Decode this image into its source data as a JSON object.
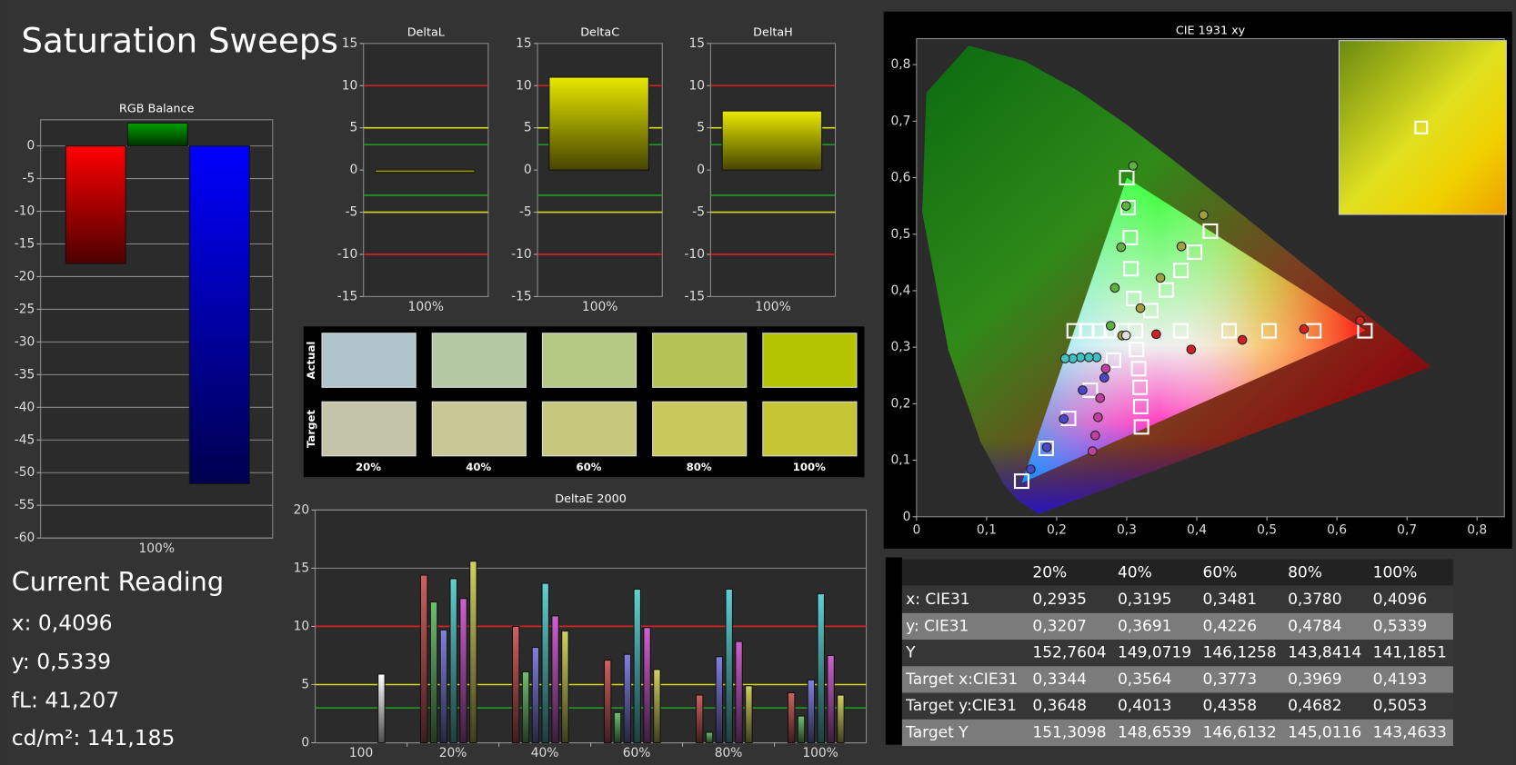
{
  "title": "Saturation Sweeps",
  "chart_data": [
    {
      "type": "bar",
      "title": "RGB Balance",
      "categories": [
        "100%"
      ],
      "series": [
        {
          "color": "#ff0000",
          "values": [
            -18
          ]
        },
        {
          "color": "#00a000",
          "values": [
            3.5
          ]
        },
        {
          "color": "#0000ff",
          "values": [
            -51.7
          ]
        }
      ],
      "ylim": [
        -60,
        4
      ],
      "yticks": [
        0,
        -5,
        -10,
        -15,
        -20,
        -25,
        -30,
        -35,
        -40,
        -45,
        -50,
        -55,
        -60
      ],
      "grid": true
    },
    {
      "type": "bar",
      "title": "DeltaL",
      "categories": [
        "100%"
      ],
      "series": [
        {
          "color": "#e8e800",
          "values": [
            -0.3
          ]
        }
      ],
      "ylim": [
        -15,
        15
      ],
      "yticks": [
        15,
        10,
        5,
        0,
        -5,
        -10,
        -15
      ],
      "grid": false,
      "reference_lines": [
        {
          "value": 10,
          "color": "#e02020"
        },
        {
          "value": -10,
          "color": "#e02020"
        },
        {
          "value": 5,
          "color": "#d8d820"
        },
        {
          "value": -5,
          "color": "#d8d820"
        },
        {
          "value": 3,
          "color": "#20a020"
        },
        {
          "value": -3,
          "color": "#20a020"
        }
      ]
    },
    {
      "type": "bar",
      "title": "DeltaC",
      "categories": [
        "100%"
      ],
      "series": [
        {
          "color": "#e8e800",
          "values": [
            11.0
          ]
        }
      ],
      "ylim": [
        -15,
        15
      ],
      "yticks": [
        15,
        10,
        5,
        0,
        -5,
        -10,
        -15
      ],
      "grid": false,
      "reference_lines": [
        {
          "value": 10,
          "color": "#e02020"
        },
        {
          "value": -10,
          "color": "#e02020"
        },
        {
          "value": 5,
          "color": "#d8d820"
        },
        {
          "value": -5,
          "color": "#d8d820"
        },
        {
          "value": 3,
          "color": "#20a020"
        },
        {
          "value": -3,
          "color": "#20a020"
        }
      ]
    },
    {
      "type": "bar",
      "title": "DeltaH",
      "categories": [
        "100%"
      ],
      "series": [
        {
          "color": "#e8e800",
          "values": [
            7.0
          ]
        }
      ],
      "ylim": [
        -15,
        15
      ],
      "yticks": [
        15,
        10,
        5,
        0,
        -5,
        -10,
        -15
      ],
      "grid": false,
      "reference_lines": [
        {
          "value": 10,
          "color": "#e02020"
        },
        {
          "value": -10,
          "color": "#e02020"
        },
        {
          "value": 5,
          "color": "#d8d820"
        },
        {
          "value": -5,
          "color": "#d8d820"
        },
        {
          "value": 3,
          "color": "#20a020"
        },
        {
          "value": -3,
          "color": "#20a020"
        }
      ]
    },
    {
      "type": "bar",
      "title": "DeltaE 2000",
      "categories": [
        "100",
        "20%",
        "40%",
        "60%",
        "80%",
        "100%"
      ],
      "series": [
        {
          "color": "#d06060",
          "values": [
            null,
            14.4,
            10.0,
            7.1,
            4.1,
            4.3
          ]
        },
        {
          "color": "#70c070",
          "values": [
            null,
            12.1,
            6.1,
            2.6,
            0.9,
            2.3
          ]
        },
        {
          "color": "#8080e0",
          "values": [
            null,
            9.7,
            8.2,
            7.6,
            7.4,
            5.4
          ]
        },
        {
          "color": "#60d0d0",
          "values": [
            null,
            14.1,
            13.7,
            13.2,
            13.2,
            12.8
          ]
        },
        {
          "color": "#d060d0",
          "values": [
            null,
            12.4,
            10.9,
            9.9,
            8.7,
            7.5
          ]
        },
        {
          "color": "#d0d060",
          "values": [
            null,
            15.6,
            9.6,
            6.3,
            4.9,
            4.1
          ]
        },
        {
          "color": "#ffffff",
          "values": [
            5.9,
            null,
            null,
            null,
            null,
            null
          ]
        }
      ],
      "ylim": [
        0,
        20
      ],
      "yticks": [
        0,
        5,
        10,
        15,
        20
      ],
      "grid": true,
      "reference_lines": [
        {
          "value": 10,
          "color": "#e02020"
        },
        {
          "value": 5,
          "color": "#d8d820"
        },
        {
          "value": 3,
          "color": "#20a020"
        }
      ]
    },
    {
      "type": "scatter",
      "title": "CIE 1931 xy",
      "xlim": [
        0,
        0.839
      ],
      "ylim": [
        0,
        0.846
      ],
      "xticks": [
        0,
        {
          "value": 0.1,
          "label": "0,1"
        },
        {
          "value": 0.2,
          "label": "0,2"
        },
        {
          "value": 0.3,
          "label": "0,3"
        },
        {
          "value": 0.4,
          "label": "0,4"
        },
        {
          "value": 0.5,
          "label": "0,5"
        },
        {
          "value": 0.6,
          "label": "0,6"
        },
        {
          "value": 0.7,
          "label": "0,7"
        },
        {
          "value": 0.8,
          "label": "0,8"
        }
      ],
      "yticks": [
        0,
        {
          "value": 0.1,
          "label": "0,1"
        },
        {
          "value": 0.2,
          "label": "0,2"
        },
        {
          "value": 0.3,
          "label": "0,3"
        },
        {
          "value": 0.4,
          "label": "0,4"
        },
        {
          "value": 0.5,
          "label": "0,5"
        },
        {
          "value": 0.6,
          "label": "0,6"
        },
        {
          "value": 0.7,
          "label": "0,7"
        },
        {
          "value": 0.8,
          "label": "0,8"
        }
      ],
      "series": [
        {
          "marker": "square",
          "color": "#ffffff",
          "x": [
            0.377,
            0.446,
            0.503,
            0.567,
            0.64,
            0.31,
            0.306,
            0.305,
            0.302,
            0.3,
            0.281,
            0.248,
            0.217,
            0.185,
            0.15,
            0.293,
            0.278,
            0.261,
            0.243,
            0.225,
            0.314,
            0.317,
            0.319,
            0.32,
            0.321,
            0.3344,
            0.3564,
            0.3773,
            0.3969,
            0.4193,
            0.3127
          ],
          "values": [
            0.329,
            0.329,
            0.329,
            0.329,
            0.329,
            0.386,
            0.439,
            0.494,
            0.547,
            0.6,
            0.277,
            0.224,
            0.174,
            0.121,
            0.063,
            0.329,
            0.329,
            0.329,
            0.329,
            0.329,
            0.296,
            0.262,
            0.229,
            0.195,
            0.159,
            0.3648,
            0.4013,
            0.4358,
            0.4682,
            0.5053,
            0.329
          ]
        },
        {
          "marker": "circle",
          "color": "#d02020",
          "x": [
            0.342,
            0.392,
            0.465,
            0.553,
            0.633
          ],
          "values": [
            0.323,
            0.296,
            0.313,
            0.332,
            0.347
          ]
        },
        {
          "marker": "circle",
          "color": "#60b040",
          "x": [
            0.277,
            0.283,
            0.292,
            0.299,
            0.309
          ],
          "values": [
            0.338,
            0.405,
            0.477,
            0.55,
            0.621
          ]
        },
        {
          "marker": "circle",
          "color": "#4848c8",
          "x": [
            0.268,
            0.237,
            0.21,
            0.186,
            0.163
          ],
          "values": [
            0.246,
            0.224,
            0.173,
            0.123,
            0.084
          ]
        },
        {
          "marker": "circle",
          "color": "#40c0c0",
          "x": [
            0.257,
            0.246,
            0.234,
            0.223,
            0.212
          ],
          "values": [
            0.282,
            0.282,
            0.282,
            0.28,
            0.28
          ]
        },
        {
          "marker": "circle",
          "color": "#c040a0",
          "x": [
            0.27,
            0.262,
            0.259,
            0.255,
            0.251
          ],
          "values": [
            0.262,
            0.21,
            0.176,
            0.144,
            0.116
          ]
        },
        {
          "marker": "circle",
          "color": "#a0a040",
          "x": [
            0.2935,
            0.3195,
            0.3481,
            0.378,
            0.4096
          ],
          "values": [
            0.3207,
            0.3691,
            0.4226,
            0.4784,
            0.5339
          ]
        },
        {
          "marker": "circle",
          "color": "#e0e0e0",
          "x": [
            0.299
          ],
          "values": [
            0.321
          ]
        }
      ]
    }
  ],
  "swatches": {
    "row_labels": [
      "Actual",
      "Target"
    ],
    "column_labels": [
      "20%",
      "40%",
      "60%",
      "80%",
      "100%"
    ],
    "colors": [
      [
        "#b0c4cc",
        "#b4c8a4",
        "#b4c884",
        "#b4c454",
        "#b4c400"
      ],
      [
        "#c4c4a8",
        "#c8c894",
        "#c8c87c",
        "#c8c85c",
        "#c4c434"
      ]
    ]
  },
  "current_reading": {
    "title": "Current Reading",
    "lines": [
      "x: 0,4096",
      "y: 0,5339",
      "fL: 41,207",
      "cd/m²: 141,185"
    ]
  },
  "table": {
    "columns": [
      "20%",
      "40%",
      "60%",
      "80%",
      "100%"
    ],
    "rows": [
      [
        "x: CIE31",
        "0,2935",
        "0,3195",
        "0,3481",
        "0,3780",
        "0,4096"
      ],
      [
        "y: CIE31",
        "0,3207",
        "0,3691",
        "0,4226",
        "0,4784",
        "0,5339"
      ],
      [
        "Y",
        "152,7604",
        "149,0719",
        "146,1258",
        "143,8414",
        "141,1851"
      ],
      [
        "Target x:CIE31",
        "0,3344",
        "0,3564",
        "0,3773",
        "0,3969",
        "0,4193"
      ],
      [
        "Target y:CIE31",
        "0,3648",
        "0,4013",
        "0,4358",
        "0,4682",
        "0,5053"
      ],
      [
        "Target Y",
        "151,3098",
        "148,6539",
        "146,6132",
        "145,0116",
        "143,4633"
      ]
    ]
  }
}
